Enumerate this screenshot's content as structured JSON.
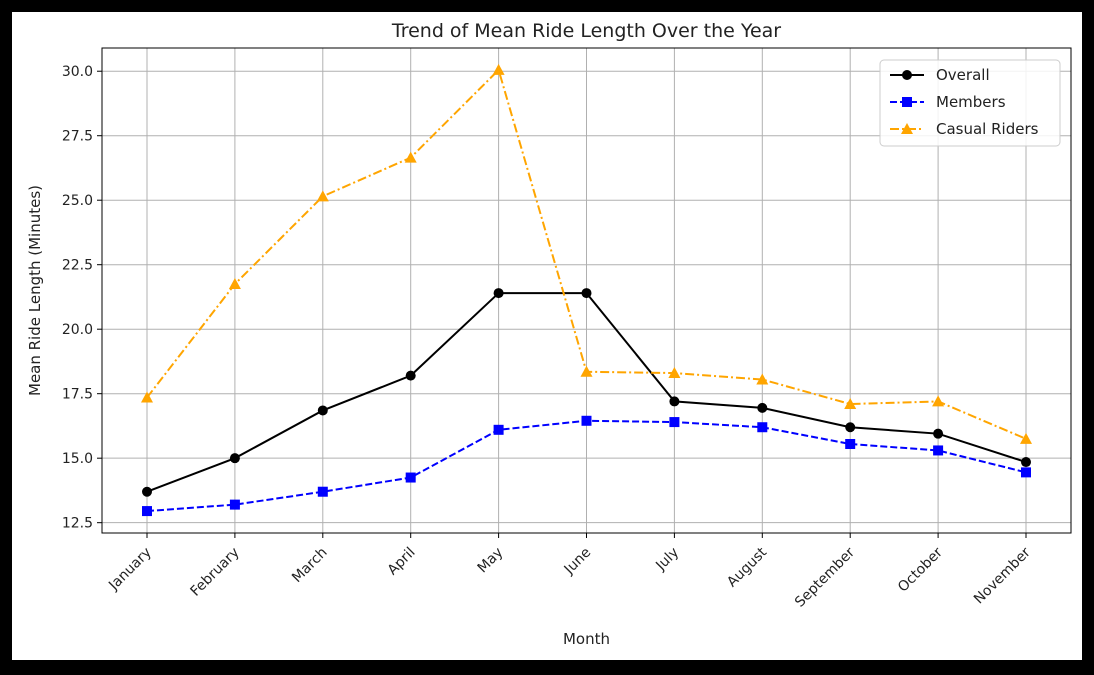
{
  "chart_data": {
    "type": "line",
    "title": "Trend of Mean Ride Length Over the Year",
    "xlabel": "Month",
    "ylabel": "Mean Ride Length (Minutes)",
    "categories": [
      "January",
      "February",
      "March",
      "April",
      "May",
      "June",
      "July",
      "August",
      "September",
      "October",
      "November"
    ],
    "ylim": [
      12.1,
      30.9
    ],
    "yticks": [
      "12.5",
      "15.0",
      "17.5",
      "20.0",
      "22.5",
      "25.0",
      "27.5",
      "30.0"
    ],
    "grid": true,
    "legend_position": "top-right",
    "series": [
      {
        "name": "Overall",
        "color": "#000000",
        "marker": "circle",
        "linestyle": "solid",
        "values": [
          13.7,
          15.0,
          16.85,
          18.2,
          21.4,
          21.4,
          17.2,
          16.95,
          16.2,
          15.95,
          14.85
        ]
      },
      {
        "name": "Members",
        "color": "#0000ff",
        "marker": "square",
        "linestyle": "dashed",
        "values": [
          12.95,
          13.2,
          13.7,
          14.25,
          16.1,
          16.45,
          16.4,
          16.2,
          15.55,
          15.3,
          14.45
        ]
      },
      {
        "name": "Casual Riders",
        "color": "#ffa500",
        "marker": "triangle",
        "linestyle": "dashdot",
        "values": [
          17.35,
          21.75,
          25.15,
          26.65,
          30.05,
          18.35,
          18.3,
          18.05,
          17.1,
          17.2,
          15.75
        ]
      }
    ]
  }
}
